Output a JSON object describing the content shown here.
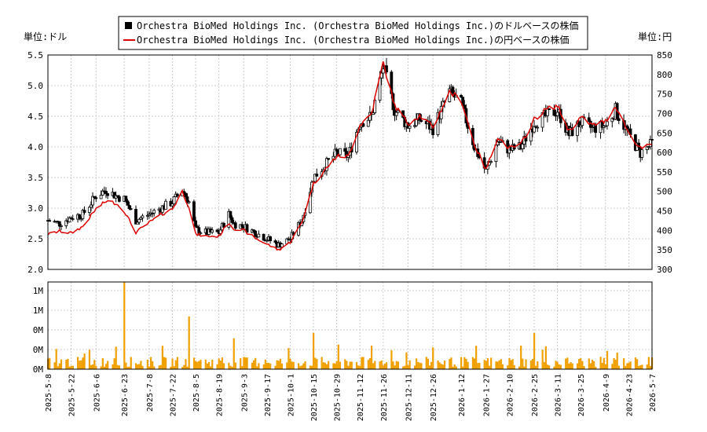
{
  "chart_data": {
    "type": "line",
    "legend": {
      "placement": "top-center",
      "entries": [
        {
          "name": "Orchestra BioMed Holdings Inc. (Orchestra BioMed Holdings Inc.)のドルベースの株価",
          "color": "#000000",
          "marker": "box"
        },
        {
          "name": "Orchestra BioMed Holdings Inc. (Orchestra BioMed Holdings Inc.)の円ベースの株価",
          "color": "#dd0000",
          "marker": "line"
        }
      ]
    },
    "left_unit_label": "単位:ドル",
    "right_unit_label": "単位:円",
    "left_ylim": [
      2.0,
      5.5
    ],
    "left_ticks": [
      "2.0",
      "2.5",
      "3.0",
      "3.5",
      "4.0",
      "4.5",
      "5.0",
      "5.5"
    ],
    "right_ylim": [
      300,
      850
    ],
    "right_ticks": [
      "300",
      "350",
      "400",
      "450",
      "500",
      "550",
      "600",
      "650",
      "700",
      "750",
      "800",
      "850"
    ],
    "volume_ticks": [
      "0M",
      "0M",
      "0M",
      "1M",
      "1M",
      "2M"
    ],
    "volume_max": 2400000,
    "x_tick_labels": [
      "2025-5-8",
      "2025-5-22",
      "2025-6-6",
      "2025-6-23",
      "2025-7-8",
      "2025-7-22",
      "2025-8-5",
      "2025-8-19",
      "2025-9-3",
      "2025-9-17",
      "2025-10-1",
      "2025-10-15",
      "2025-10-29",
      "2025-11-12",
      "2025-11-26",
      "2025-12-11",
      "2025-12-26",
      "2026-1-12",
      "2026-1-27",
      "2026-2-10",
      "2026-2-25",
      "2026-3-11",
      "2026-3-25",
      "2026-4-9",
      "2026-4-23",
      "2026-5-7"
    ],
    "grid": true,
    "usd_anchors": [
      [
        "2025-5-8",
        2.8
      ],
      [
        "2025-5-15",
        2.75
      ],
      [
        "2025-5-22",
        2.85
      ],
      [
        "2025-5-29",
        2.9
      ],
      [
        "2025-6-6",
        3.2
      ],
      [
        "2025-6-12",
        3.3
      ],
      [
        "2025-6-18",
        3.2
      ],
      [
        "2025-6-23",
        3.15
      ],
      [
        "2025-6-30",
        2.8
      ],
      [
        "2025-7-8",
        2.9
      ],
      [
        "2025-7-15",
        3.0
      ],
      [
        "2025-7-22",
        3.1
      ],
      [
        "2025-7-28",
        3.3
      ],
      [
        "2025-8-1",
        3.1
      ],
      [
        "2025-8-5",
        2.65
      ],
      [
        "2025-8-12",
        2.6
      ],
      [
        "2025-8-19",
        2.6
      ],
      [
        "2025-8-25",
        2.9
      ],
      [
        "2025-8-28",
        2.75
      ],
      [
        "2025-9-3",
        2.7
      ],
      [
        "2025-9-10",
        2.6
      ],
      [
        "2025-9-17",
        2.5
      ],
      [
        "2025-9-24",
        2.4
      ],
      [
        "2025-10-1",
        2.5
      ],
      [
        "2025-10-8",
        2.8
      ],
      [
        "2025-10-15",
        3.5
      ],
      [
        "2025-10-22",
        3.7
      ],
      [
        "2025-10-29",
        3.9
      ],
      [
        "2025-11-5",
        3.85
      ],
      [
        "2025-11-12",
        4.4
      ],
      [
        "2025-11-19",
        4.5
      ],
      [
        "2025-11-26",
        5.3
      ],
      [
        "2025-12-3",
        4.6
      ],
      [
        "2025-12-11",
        4.35
      ],
      [
        "2025-12-18",
        4.45
      ],
      [
        "2025-12-26",
        4.3
      ],
      [
        "2026-1-5",
        4.9
      ],
      [
        "2026-1-12",
        4.7
      ],
      [
        "2026-1-20",
        4.0
      ],
      [
        "2026-1-27",
        3.6
      ],
      [
        "2026-2-3",
        4.1
      ],
      [
        "2026-2-10",
        3.95
      ],
      [
        "2026-2-17",
        4.0
      ],
      [
        "2026-2-25",
        4.4
      ],
      [
        "2026-3-4",
        4.5
      ],
      [
        "2026-3-11",
        4.6
      ],
      [
        "2026-3-18",
        4.2
      ],
      [
        "2026-3-25",
        4.4
      ],
      [
        "2026-4-1",
        4.3
      ],
      [
        "2026-4-9",
        4.35
      ],
      [
        "2026-4-15",
        4.6
      ],
      [
        "2026-4-23",
        4.2
      ],
      [
        "2026-4-30",
        3.9
      ],
      [
        "2026-5-7",
        4.05
      ]
    ],
    "jpy_anchors": [
      [
        "2025-5-8",
        390
      ],
      [
        "2025-5-15",
        398
      ],
      [
        "2025-5-22",
        393
      ],
      [
        "2025-5-29",
        410
      ],
      [
        "2025-6-6",
        455
      ],
      [
        "2025-6-12",
        475
      ],
      [
        "2025-6-18",
        470
      ],
      [
        "2025-6-23",
        450
      ],
      [
        "2025-6-30",
        395
      ],
      [
        "2025-7-8",
        420
      ],
      [
        "2025-7-15",
        440
      ],
      [
        "2025-7-22",
        455
      ],
      [
        "2025-7-28",
        500
      ],
      [
        "2025-8-1",
        460
      ],
      [
        "2025-8-5",
        390
      ],
      [
        "2025-8-12",
        385
      ],
      [
        "2025-8-19",
        385
      ],
      [
        "2025-8-25",
        420
      ],
      [
        "2025-8-28",
        405
      ],
      [
        "2025-9-3",
        400
      ],
      [
        "2025-9-10",
        380
      ],
      [
        "2025-9-17",
        365
      ],
      [
        "2025-9-24",
        350
      ],
      [
        "2025-10-1",
        370
      ],
      [
        "2025-10-8",
        420
      ],
      [
        "2025-10-15",
        520
      ],
      [
        "2025-10-22",
        555
      ],
      [
        "2025-10-29",
        590
      ],
      [
        "2025-11-5",
        590
      ],
      [
        "2025-11-12",
        670
      ],
      [
        "2025-11-19",
        700
      ],
      [
        "2025-11-26",
        830
      ],
      [
        "2025-12-3",
        720
      ],
      [
        "2025-12-11",
        675
      ],
      [
        "2025-12-18",
        695
      ],
      [
        "2025-12-26",
        665
      ],
      [
        "2026-1-5",
        755
      ],
      [
        "2026-1-12",
        735
      ],
      [
        "2026-1-20",
        620
      ],
      [
        "2026-1-27",
        555
      ],
      [
        "2026-2-3",
        640
      ],
      [
        "2026-2-10",
        610
      ],
      [
        "2026-2-17",
        620
      ],
      [
        "2026-2-25",
        685
      ],
      [
        "2026-3-4",
        710
      ],
      [
        "2026-3-11",
        720
      ],
      [
        "2026-3-18",
        655
      ],
      [
        "2026-3-25",
        690
      ],
      [
        "2026-4-1",
        670
      ],
      [
        "2026-4-9",
        680
      ],
      [
        "2026-4-15",
        720
      ],
      [
        "2026-4-23",
        650
      ],
      [
        "2026-4-30",
        610
      ],
      [
        "2026-5-7",
        620
      ]
    ],
    "volume_spikes": [
      [
        "2025-6-23",
        2400000
      ],
      [
        "2025-8-1",
        1450000
      ],
      [
        "2025-10-15",
        1000000
      ],
      [
        "2026-2-25",
        1000000
      ],
      [
        "2026-2-17",
        650000
      ],
      [
        "2025-8-28",
        850000
      ],
      [
        "2025-11-19",
        650000
      ],
      [
        "2025-12-26",
        600000
      ],
      [
        "2025-6-18",
        620000
      ]
    ],
    "volume_base": 200000
  }
}
